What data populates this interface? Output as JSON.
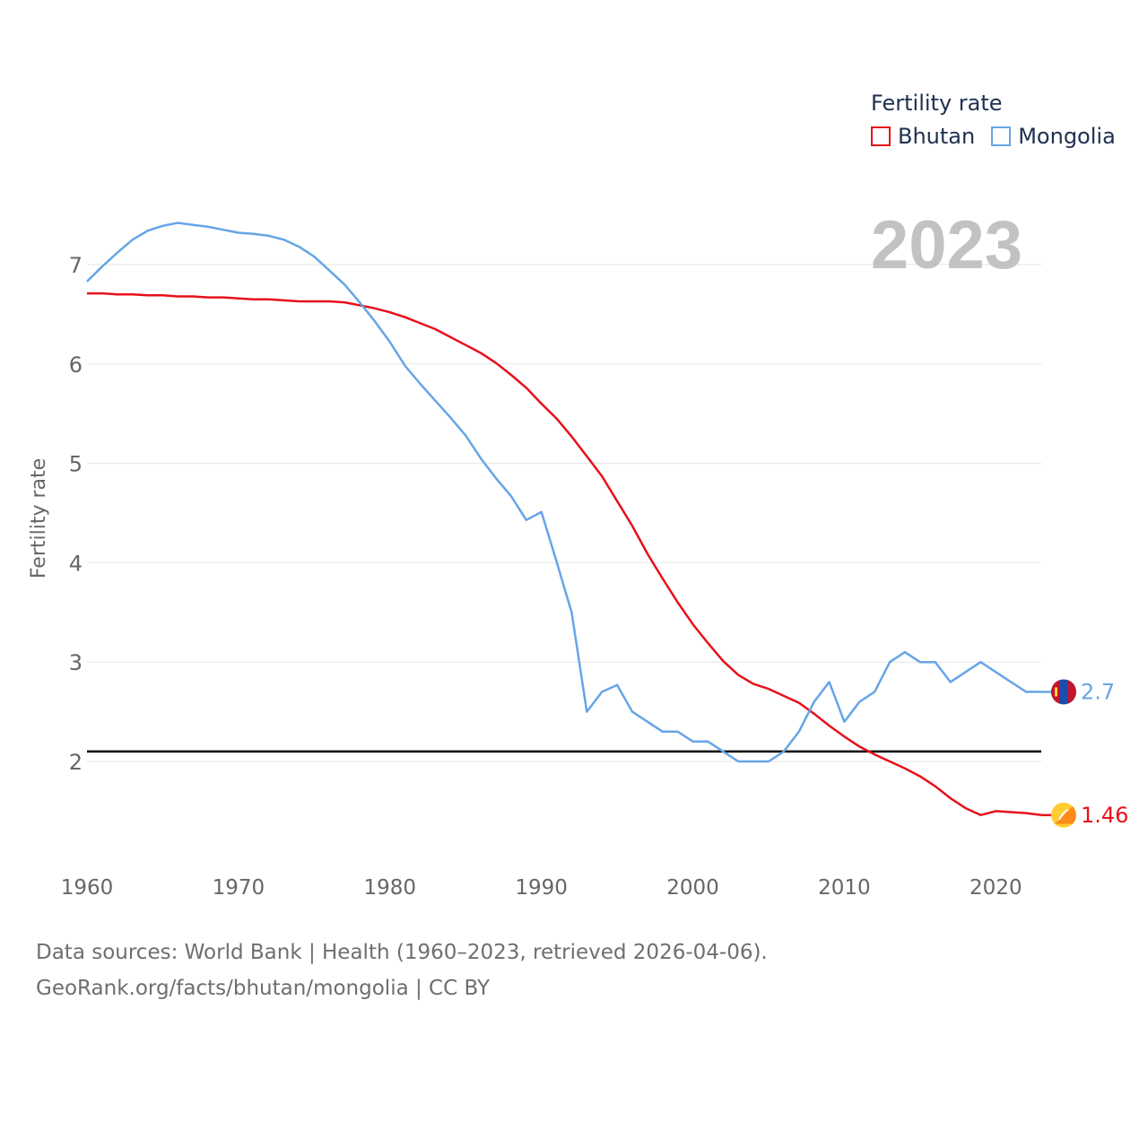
{
  "chart_data": {
    "type": "line",
    "title": "",
    "xlabel": "",
    "ylabel": "Fertility rate",
    "xlim": [
      1960,
      2023
    ],
    "ylim": [
      1.0,
      7.6
    ],
    "x_ticks": [
      1960,
      1970,
      1980,
      1990,
      2000,
      2010,
      2020
    ],
    "y_ticks": [
      2,
      3,
      4,
      5,
      6,
      7
    ],
    "reference_line": 2.1,
    "year_label": "2023",
    "x": [
      1960,
      1961,
      1962,
      1963,
      1964,
      1965,
      1966,
      1967,
      1968,
      1969,
      1970,
      1971,
      1972,
      1973,
      1974,
      1975,
      1976,
      1977,
      1978,
      1979,
      1980,
      1981,
      1982,
      1983,
      1984,
      1985,
      1986,
      1987,
      1988,
      1989,
      1990,
      1991,
      1992,
      1993,
      1994,
      1995,
      1996,
      1997,
      1998,
      1999,
      2000,
      2001,
      2002,
      2003,
      2004,
      2005,
      2006,
      2007,
      2008,
      2009,
      2010,
      2011,
      2012,
      2013,
      2014,
      2015,
      2016,
      2017,
      2018,
      2019,
      2020,
      2021,
      2022,
      2023
    ],
    "series": [
      {
        "name": "Bhutan",
        "color": "#e8101a",
        "end_label": "1.46",
        "values": [
          6.71,
          6.71,
          6.7,
          6.7,
          6.69,
          6.69,
          6.68,
          6.68,
          6.67,
          6.67,
          6.66,
          6.65,
          6.65,
          6.64,
          6.63,
          6.63,
          6.63,
          6.62,
          6.59,
          6.56,
          6.52,
          6.47,
          6.41,
          6.35,
          6.27,
          6.19,
          6.11,
          6.01,
          5.89,
          5.76,
          5.6,
          5.45,
          5.27,
          5.07,
          4.87,
          4.62,
          4.37,
          4.09,
          3.84,
          3.6,
          3.38,
          3.19,
          3.01,
          2.87,
          2.78,
          2.73,
          2.66,
          2.59,
          2.48,
          2.36,
          2.25,
          2.15,
          2.07,
          2.0,
          1.93,
          1.85,
          1.75,
          1.63,
          1.53,
          1.46,
          1.5,
          1.49,
          1.48,
          1.46
        ]
      },
      {
        "name": "Mongolia",
        "color": "#66a5e6",
        "end_label": "2.7",
        "values": [
          6.83,
          6.98,
          7.12,
          7.25,
          7.34,
          7.39,
          7.42,
          7.4,
          7.38,
          7.35,
          7.32,
          7.31,
          7.29,
          7.25,
          7.18,
          7.08,
          6.94,
          6.8,
          6.62,
          6.43,
          6.22,
          5.98,
          5.8,
          5.63,
          5.46,
          5.28,
          5.05,
          4.85,
          4.67,
          4.43,
          4.51,
          4.01,
          3.5,
          2.5,
          2.7,
          2.77,
          2.5,
          2.4,
          2.3,
          2.3,
          2.2,
          2.2,
          2.1,
          2.0,
          2.0,
          2.0,
          2.1,
          2.3,
          2.6,
          2.8,
          2.4,
          2.6,
          2.7,
          3.0,
          3.1,
          3.0,
          3.0,
          2.8,
          2.9,
          3.0,
          2.9,
          2.8,
          2.7,
          2.7
        ]
      }
    ]
  },
  "legend": {
    "title": "Fertility rate",
    "items": [
      "Bhutan",
      "Mongolia"
    ]
  },
  "footer": {
    "line1": "Data sources: World Bank | Health (1960–2023, retrieved 2026-04-06).",
    "line2": "GeoRank.org/facts/bhutan/mongolia | CC BY"
  },
  "colors": {
    "bhutan": "#e8101a",
    "mongolia": "#66a5e6",
    "grid": "#e6e6e6",
    "axis_text": "#666666",
    "year_text": "#c2c2c2",
    "reference": "#000000"
  },
  "icons": [
    "bhutan-flag-icon",
    "mongolia-flag-icon"
  ]
}
